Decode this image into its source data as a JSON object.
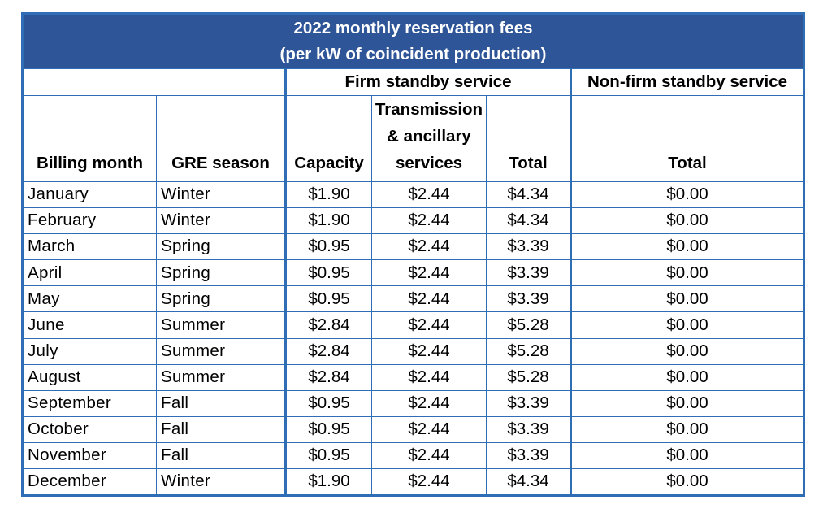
{
  "table": {
    "title_line1": "2022 monthly reservation fees",
    "title_line2": "(per kW of coincident production)",
    "group_firm": "Firm standby service",
    "group_nonfirm": "Non-firm standby service",
    "headers": {
      "billing_month": "Billing month",
      "gre_season": "GRE season",
      "capacity": "Capacity",
      "transmission_line1": "Transmission",
      "transmission_line2": "& ancillary",
      "transmission_line3": "services",
      "firm_total": "Total",
      "nonfirm_total": "Total"
    },
    "rows": [
      {
        "month": "January",
        "season": "Winter",
        "capacity": "$1.90",
        "transmission": "$2.44",
        "firm_total": "$4.34",
        "nonfirm_total": "$0.00"
      },
      {
        "month": "February",
        "season": "Winter",
        "capacity": "$1.90",
        "transmission": "$2.44",
        "firm_total": "$4.34",
        "nonfirm_total": "$0.00"
      },
      {
        "month": "March",
        "season": "Spring",
        "capacity": "$0.95",
        "transmission": "$2.44",
        "firm_total": "$3.39",
        "nonfirm_total": "$0.00"
      },
      {
        "month": "April",
        "season": "Spring",
        "capacity": "$0.95",
        "transmission": "$2.44",
        "firm_total": "$3.39",
        "nonfirm_total": "$0.00"
      },
      {
        "month": "May",
        "season": "Spring",
        "capacity": "$0.95",
        "transmission": "$2.44",
        "firm_total": "$3.39",
        "nonfirm_total": "$0.00"
      },
      {
        "month": "June",
        "season": "Summer",
        "capacity": "$2.84",
        "transmission": "$2.44",
        "firm_total": "$5.28",
        "nonfirm_total": "$0.00"
      },
      {
        "month": "July",
        "season": "Summer",
        "capacity": "$2.84",
        "transmission": "$2.44",
        "firm_total": "$5.28",
        "nonfirm_total": "$0.00"
      },
      {
        "month": "August",
        "season": "Summer",
        "capacity": "$2.84",
        "transmission": "$2.44",
        "firm_total": "$5.28",
        "nonfirm_total": "$0.00"
      },
      {
        "month": "September",
        "season": "Fall",
        "capacity": "$0.95",
        "transmission": "$2.44",
        "firm_total": "$3.39",
        "nonfirm_total": "$0.00"
      },
      {
        "month": "October",
        "season": "Fall",
        "capacity": "$0.95",
        "transmission": "$2.44",
        "firm_total": "$3.39",
        "nonfirm_total": "$0.00"
      },
      {
        "month": "November",
        "season": "Fall",
        "capacity": "$0.95",
        "transmission": "$2.44",
        "firm_total": "$3.39",
        "nonfirm_total": "$0.00"
      },
      {
        "month": "December",
        "season": "Winter",
        "capacity": "$1.90",
        "transmission": "$2.44",
        "firm_total": "$4.34",
        "nonfirm_total": "$0.00"
      }
    ],
    "colors": {
      "title_background": "#2e5597",
      "border": "#2f6eb5"
    }
  }
}
